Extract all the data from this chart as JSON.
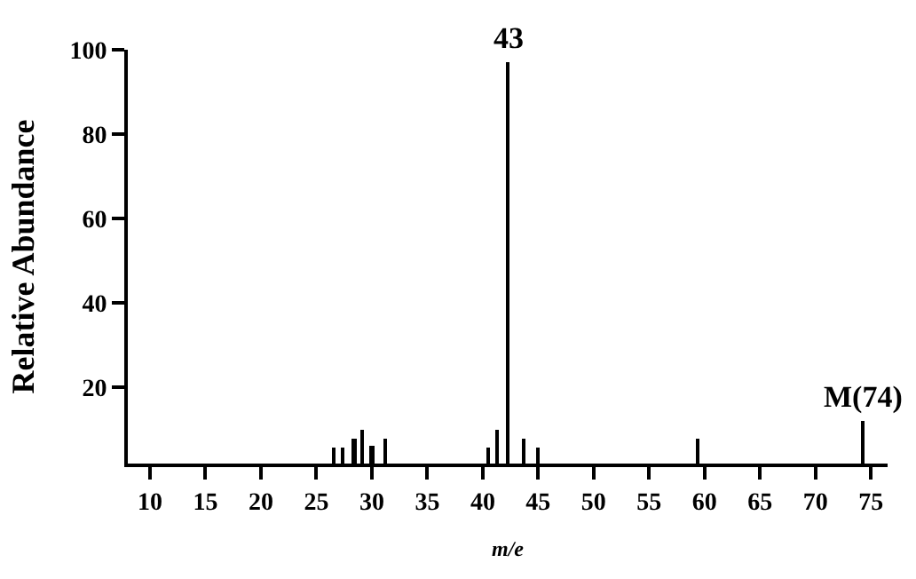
{
  "chart_data": {
    "type": "bar",
    "xlabel": "m/e",
    "ylabel": "Relative Abundance",
    "x": [
      26.6,
      27.4,
      28.4,
      29.1,
      30.0,
      31.2,
      40.5,
      41.3,
      42.3,
      43.7,
      45.0,
      59.4,
      74.2
    ],
    "values": [
      5.6,
      5.6,
      7.7,
      9.8,
      6,
      7.8,
      5.9,
      9.9,
      97,
      8,
      5.9,
      8,
      12.1
    ],
    "color": "#000000",
    "xlim": [
      8,
      76.5
    ],
    "xticks": [
      10,
      15,
      20,
      25,
      30,
      35,
      40,
      45,
      50,
      55,
      60,
      65,
      70,
      75
    ],
    "ylim": [
      2,
      100
    ],
    "yticks": [
      20,
      40,
      60,
      80,
      100
    ],
    "annotations": [
      {
        "text": "43",
        "x": 42.3,
        "y": 97
      },
      {
        "text": "M(74)",
        "x": 74.2,
        "y": 12.1
      }
    ]
  }
}
